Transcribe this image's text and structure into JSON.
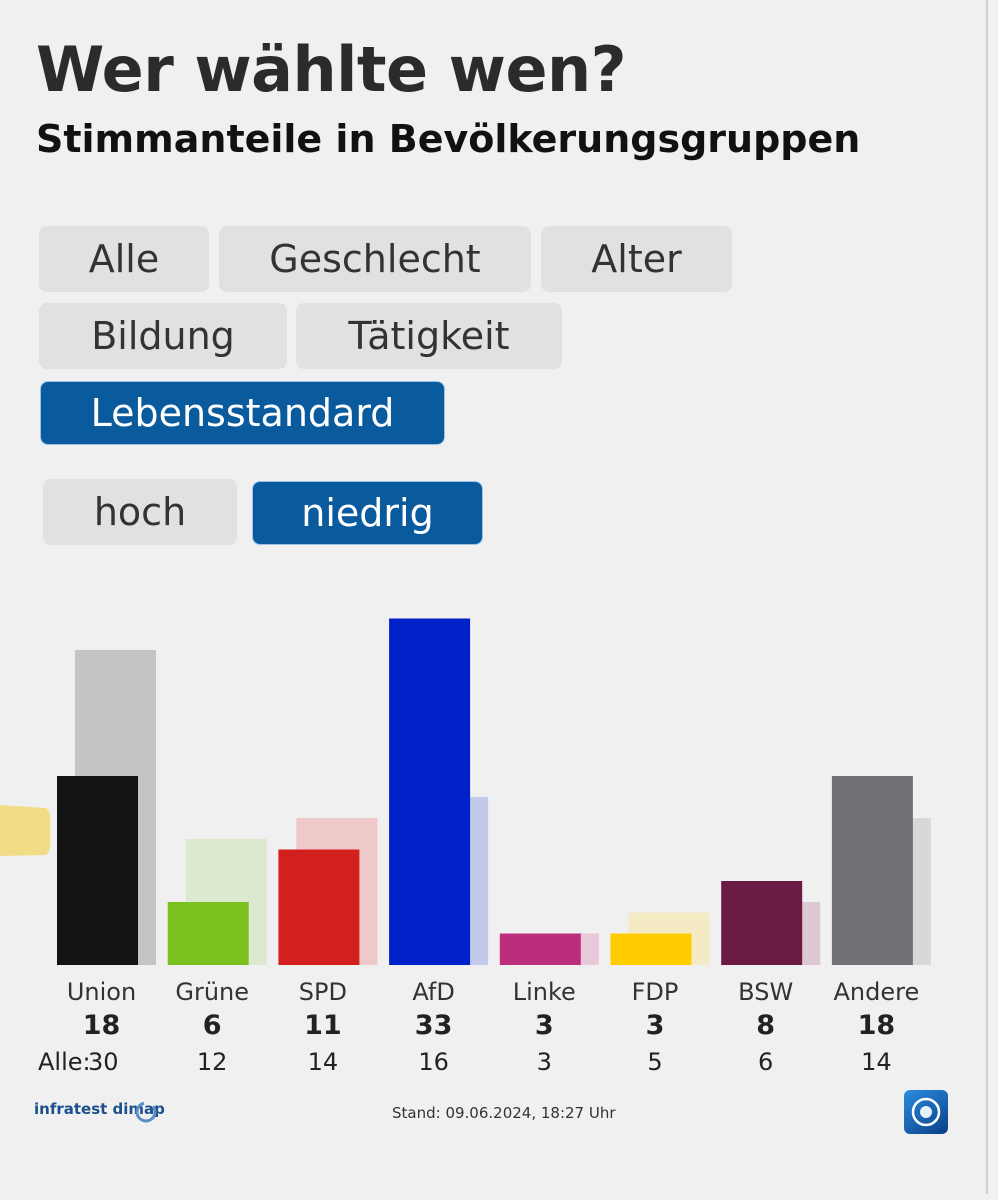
{
  "header": {
    "title": "Wer wählte wen?",
    "subtitle": "Stimmanteile in Bevölkerungsgruppen"
  },
  "filters": {
    "groups": [
      "Alle",
      "Geschlecht",
      "Alter",
      "Bildung",
      "Tätigkeit",
      "Lebensstandard"
    ],
    "active_group": "Lebensstandard",
    "sub_options": [
      "hoch",
      "niedrig"
    ],
    "active_sub": "niedrig"
  },
  "chart_data": {
    "type": "bar",
    "categories": [
      "Union",
      "Grüne",
      "SPD",
      "AfD",
      "Linke",
      "FDP",
      "BSW",
      "Andere"
    ],
    "series": [
      {
        "values": [
          18,
          6,
          11,
          33,
          3,
          3,
          8,
          18
        ]
      },
      {
        "name": "Alle",
        "values": [
          30,
          12,
          14,
          16,
          3,
          5,
          6,
          14
        ]
      }
    ],
    "alle_label": "Alle:",
    "colors": [
      "#141414",
      "#7ac11f",
      "#d41f1f",
      "#0021c8",
      "#bb2e7c",
      "#ffcc00",
      "#6b1a44",
      "#707275"
    ],
    "background_colors": [
      "#c4c4c4",
      "#dce9cf",
      "#efc9c9",
      "#c3c9ea",
      "#e8c9d9",
      "#f4ebc4",
      "#dcc8d2",
      "#d8d8d8"
    ],
    "ylim": [
      0,
      35
    ]
  },
  "footer": {
    "source": "infratest dimap",
    "stand": "Stand: 09.06.2024, 18:27 Uhr"
  },
  "colors": {
    "accent": "#0a5b9e",
    "pill": "#e1e1e1"
  }
}
